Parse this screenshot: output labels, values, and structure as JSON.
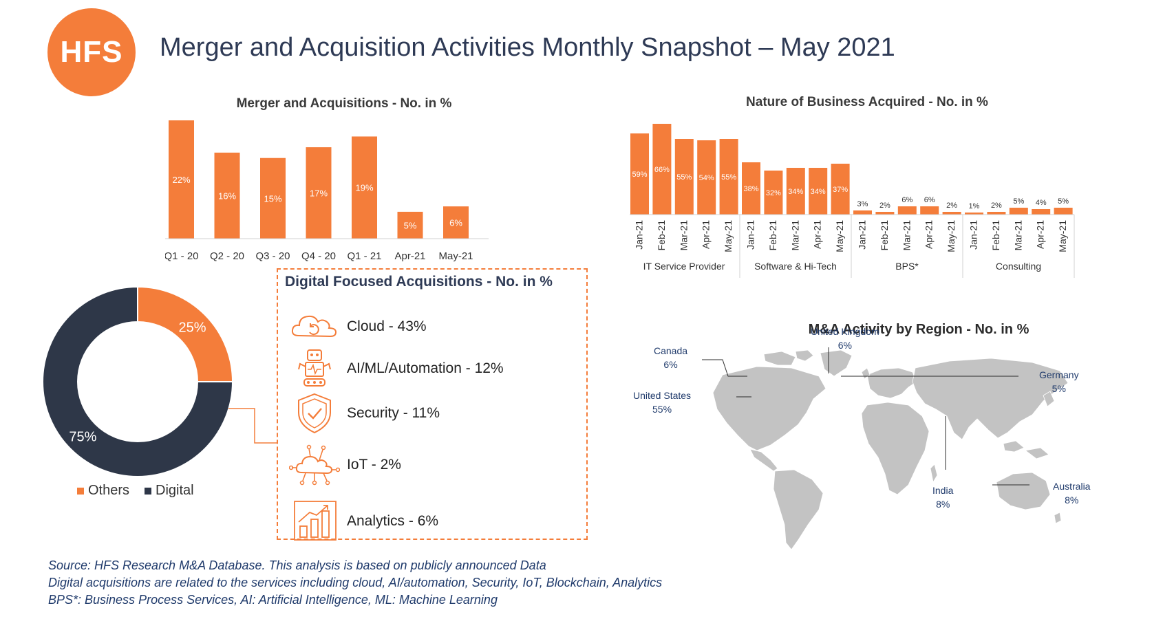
{
  "header": {
    "logo_text": "HFS",
    "title": "Merger and Acquisition Activities Monthly Snapshot – May 2021"
  },
  "chart_data": [
    {
      "id": "ma-quarterly",
      "type": "bar",
      "title": "Merger and Acquisitions  - No. in %",
      "categories": [
        "Q1 - 20",
        "Q2 - 20",
        "Q3 - 20",
        "Q4 - 20",
        "Q1 - 21",
        "Apr-21",
        "May-21"
      ],
      "values": [
        22,
        16,
        15,
        17,
        19,
        5,
        6
      ],
      "data_labels": [
        "22%",
        "16%",
        "15%",
        "17%",
        "19%",
        "5%",
        "6%"
      ],
      "ylim": [
        0,
        22
      ],
      "color": "#f47d3a",
      "grid": false
    },
    {
      "id": "nature-of-business",
      "type": "bar",
      "title": "Nature of Business Acquired - No. in %",
      "groups": [
        {
          "name": "IT Service Provider",
          "months": [
            "Jan-21",
            "Feb-21",
            "Mar-21",
            "Apr-21",
            "May-21"
          ],
          "values": [
            59,
            66,
            55,
            54,
            55
          ],
          "data_labels": [
            "59%",
            "66%",
            "55%",
            "54%",
            "55%"
          ]
        },
        {
          "name": "Software & Hi-Tech",
          "months": [
            "Jan-21",
            "Feb-21",
            "Mar-21",
            "Apr-21",
            "May-21"
          ],
          "values": [
            38,
            32,
            34,
            34,
            37
          ],
          "data_labels": [
            "38%",
            "32%",
            "34%",
            "34%",
            "37%"
          ]
        },
        {
          "name": "BPS*",
          "months": [
            "Jan-21",
            "Feb-21",
            "Mar-21",
            "Apr-21",
            "May-21"
          ],
          "values": [
            3,
            2,
            6,
            6,
            2
          ],
          "data_labels": [
            "3%",
            "2%",
            "6%",
            "6%",
            "2%"
          ]
        },
        {
          "name": "Consulting",
          "months": [
            "Jan-21",
            "Feb-21",
            "Mar-21",
            "Apr-21",
            "May-21"
          ],
          "values": [
            1,
            2,
            5,
            4,
            5
          ],
          "data_labels": [
            "1%",
            "2%",
            "5%",
            "4%",
            "5%"
          ]
        }
      ],
      "ylim": [
        0,
        66
      ],
      "color": "#f47d3a",
      "grid": false
    },
    {
      "id": "digital-split",
      "type": "pie",
      "categories": [
        "Others",
        "Digital"
      ],
      "values": [
        25,
        75
      ],
      "data_labels": [
        "25%",
        "75%"
      ],
      "colors": [
        "#f47d3a",
        "#2e3748"
      ],
      "legend": "bottom"
    }
  ],
  "digital": {
    "title": "Digital Focused Acquisitions - No. in %",
    "items": [
      {
        "label": "Cloud - 43%",
        "icon": "cloud-icon"
      },
      {
        "label": "AI/ML/Automation - 12%",
        "icon": "robot-icon"
      },
      {
        "label": "Security - 11%",
        "icon": "shield-icon"
      },
      {
        "label": "IoT - 2%",
        "icon": "iot-cloud-icon"
      },
      {
        "label": "Analytics - 6%",
        "icon": "analytics-icon"
      }
    ]
  },
  "region": {
    "title": "M&A Activity by Region - No. in %",
    "labels": [
      {
        "name": "Canada",
        "value": "6%"
      },
      {
        "name": "United Kingdom",
        "value": "6%"
      },
      {
        "name": "Germany",
        "value": "5%"
      },
      {
        "name": "United States",
        "value": "55%"
      },
      {
        "name": "India",
        "value": "8%"
      },
      {
        "name": "Australia",
        "value": "8%"
      }
    ]
  },
  "footnotes": [
    "Source: HFS Research M&A Database. This analysis is based on publicly announced Data",
    "Digital acquisitions are related to the services including cloud, AI/automation, Security, IoT, Blockchain, Analytics",
    "BPS*: Business Process Services, AI: Artificial Intelligence, ML: Machine Learning"
  ]
}
